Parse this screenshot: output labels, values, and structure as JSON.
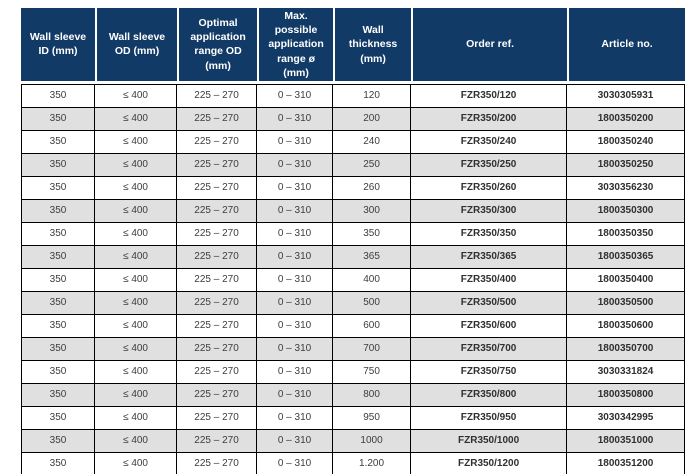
{
  "colors": {
    "header_background": "#123a67",
    "header_text": "#ffffff",
    "row_background": "#ffffff",
    "row_alt_background": "#e0e0e0",
    "grid_border": "#000000",
    "body_text": "#3d3d3d"
  },
  "table": {
    "columns": [
      {
        "key": "wall_sleeve_id",
        "label": "Wall sleeve ID (mm)"
      },
      {
        "key": "wall_sleeve_od",
        "label": "Wall sleeve OD (mm)"
      },
      {
        "key": "optimal_range_od",
        "label": "Optimal application range OD (mm)"
      },
      {
        "key": "max_range",
        "label": "Max. possible application range ø (mm)"
      },
      {
        "key": "wall_thickness",
        "label": "Wall thickness (mm)"
      },
      {
        "key": "order_ref",
        "label": "Order ref."
      },
      {
        "key": "article_no",
        "label": "Article no."
      }
    ],
    "rows": [
      {
        "wall_sleeve_id": "350",
        "wall_sleeve_od": "≤ 400",
        "optimal_range_od": "225 – 270",
        "max_range": "0 – 310",
        "wall_thickness": "120",
        "order_ref": "FZR350/120",
        "article_no": "3030305931"
      },
      {
        "wall_sleeve_id": "350",
        "wall_sleeve_od": "≤ 400",
        "optimal_range_od": "225 – 270",
        "max_range": "0 – 310",
        "wall_thickness": "200",
        "order_ref": "FZR350/200",
        "article_no": "1800350200"
      },
      {
        "wall_sleeve_id": "350",
        "wall_sleeve_od": "≤ 400",
        "optimal_range_od": "225 – 270",
        "max_range": "0 – 310",
        "wall_thickness": "240",
        "order_ref": "FZR350/240",
        "article_no": "1800350240"
      },
      {
        "wall_sleeve_id": "350",
        "wall_sleeve_od": "≤ 400",
        "optimal_range_od": "225 – 270",
        "max_range": "0 – 310",
        "wall_thickness": "250",
        "order_ref": "FZR350/250",
        "article_no": "1800350250"
      },
      {
        "wall_sleeve_id": "350",
        "wall_sleeve_od": "≤ 400",
        "optimal_range_od": "225 – 270",
        "max_range": "0 – 310",
        "wall_thickness": "260",
        "order_ref": "FZR350/260",
        "article_no": "3030356230"
      },
      {
        "wall_sleeve_id": "350",
        "wall_sleeve_od": "≤ 400",
        "optimal_range_od": "225 – 270",
        "max_range": "0 – 310",
        "wall_thickness": "300",
        "order_ref": "FZR350/300",
        "article_no": "1800350300"
      },
      {
        "wall_sleeve_id": "350",
        "wall_sleeve_od": "≤ 400",
        "optimal_range_od": "225 – 270",
        "max_range": "0 – 310",
        "wall_thickness": "350",
        "order_ref": "FZR350/350",
        "article_no": "1800350350"
      },
      {
        "wall_sleeve_id": "350",
        "wall_sleeve_od": "≤ 400",
        "optimal_range_od": "225 – 270",
        "max_range": "0 – 310",
        "wall_thickness": "365",
        "order_ref": "FZR350/365",
        "article_no": "1800350365"
      },
      {
        "wall_sleeve_id": "350",
        "wall_sleeve_od": "≤ 400",
        "optimal_range_od": "225 – 270",
        "max_range": "0 – 310",
        "wall_thickness": "400",
        "order_ref": "FZR350/400",
        "article_no": "1800350400"
      },
      {
        "wall_sleeve_id": "350",
        "wall_sleeve_od": "≤ 400",
        "optimal_range_od": "225 – 270",
        "max_range": "0 – 310",
        "wall_thickness": "500",
        "order_ref": "FZR350/500",
        "article_no": "1800350500"
      },
      {
        "wall_sleeve_id": "350",
        "wall_sleeve_od": "≤ 400",
        "optimal_range_od": "225 – 270",
        "max_range": "0 – 310",
        "wall_thickness": "600",
        "order_ref": "FZR350/600",
        "article_no": "1800350600"
      },
      {
        "wall_sleeve_id": "350",
        "wall_sleeve_od": "≤ 400",
        "optimal_range_od": "225 – 270",
        "max_range": "0 – 310",
        "wall_thickness": "700",
        "order_ref": "FZR350/700",
        "article_no": "1800350700"
      },
      {
        "wall_sleeve_id": "350",
        "wall_sleeve_od": "≤ 400",
        "optimal_range_od": "225 – 270",
        "max_range": "0 – 310",
        "wall_thickness": "750",
        "order_ref": "FZR350/750",
        "article_no": "3030331824"
      },
      {
        "wall_sleeve_id": "350",
        "wall_sleeve_od": "≤ 400",
        "optimal_range_od": "225 – 270",
        "max_range": "0 – 310",
        "wall_thickness": "800",
        "order_ref": "FZR350/800",
        "article_no": "1800350800"
      },
      {
        "wall_sleeve_id": "350",
        "wall_sleeve_od": "≤ 400",
        "optimal_range_od": "225 – 270",
        "max_range": "0 – 310",
        "wall_thickness": "950",
        "order_ref": "FZR350/950",
        "article_no": "3030342995"
      },
      {
        "wall_sleeve_id": "350",
        "wall_sleeve_od": "≤ 400",
        "optimal_range_od": "225 – 270",
        "max_range": "0 – 310",
        "wall_thickness": "1000",
        "order_ref": "FZR350/1000",
        "article_no": "1800351000"
      },
      {
        "wall_sleeve_id": "350",
        "wall_sleeve_od": "≤ 400",
        "optimal_range_od": "225 – 270",
        "max_range": "0 – 310",
        "wall_thickness": "1.200",
        "order_ref": "FZR350/1200",
        "article_no": "1800351200"
      }
    ]
  }
}
